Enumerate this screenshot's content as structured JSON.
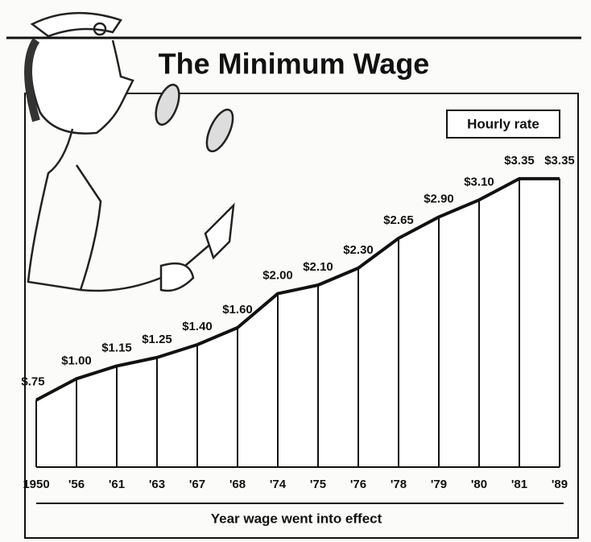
{
  "chart_data": {
    "type": "area",
    "title": "The Minimum Wage",
    "units_label": "Hourly rate",
    "x_label": "Year wage went into effect",
    "categories": [
      "1950",
      "'56",
      "'61",
      "'63",
      "'67",
      "'68",
      "'74",
      "'75",
      "'76",
      "'78",
      "'79",
      "'80",
      "'81",
      "'89"
    ],
    "values": [
      0.75,
      1.0,
      1.15,
      1.25,
      1.4,
      1.6,
      2.0,
      2.1,
      2.3,
      2.65,
      2.9,
      3.1,
      3.35,
      3.35
    ],
    "value_labels": [
      "$.75",
      "$1.00",
      "$1.15",
      "$1.25",
      "$1.40",
      "$1.60",
      "$2.00",
      "$2.10",
      "$2.30",
      "$2.65",
      "$2.90",
      "$3.10",
      "$3.35",
      "$3.35"
    ],
    "ylim": [
      0,
      3.5
    ],
    "color": "#111111"
  }
}
